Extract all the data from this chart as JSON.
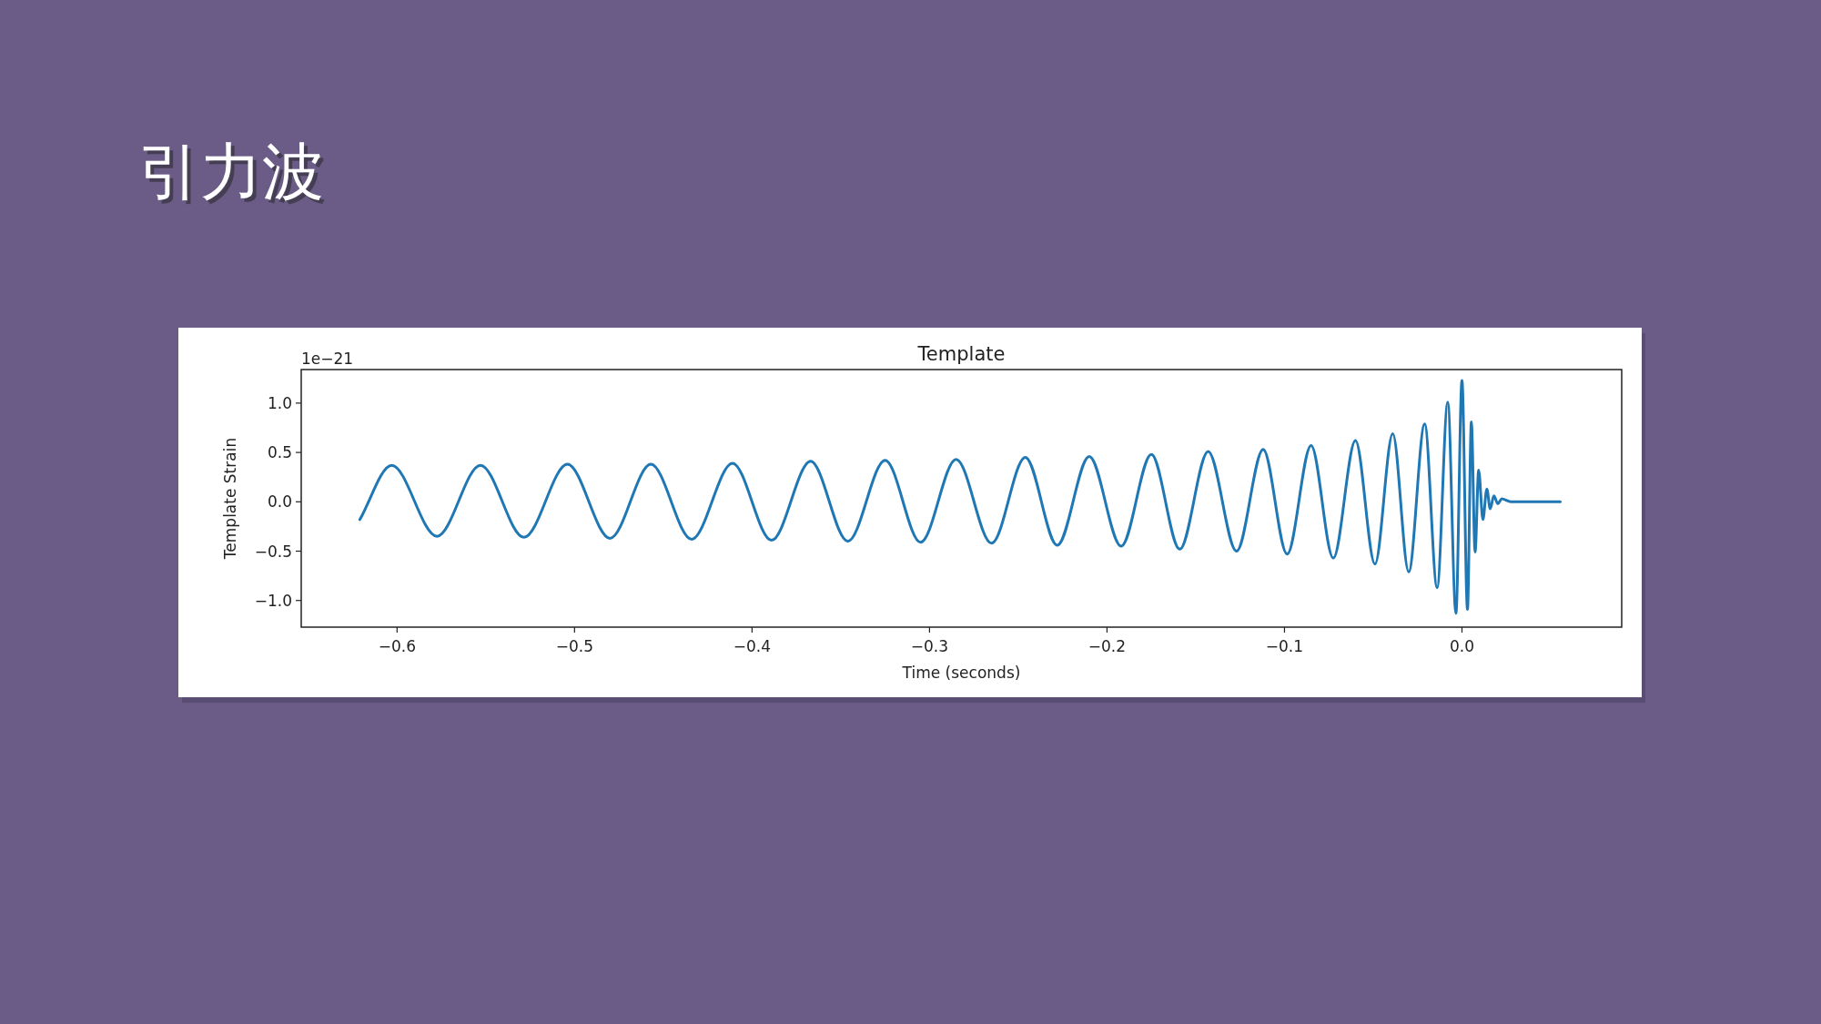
{
  "chart_data": {
    "type": "line",
    "title": "引力波",
    "subtitle": "Template",
    "xlabel": "Time (seconds)",
    "ylabel": "Template Strain",
    "annotations": [
      "1e−21"
    ],
    "x": [
      -0.621,
      -0.603,
      -0.5775,
      -0.553,
      -0.5285,
      -0.504,
      -0.48,
      -0.457,
      -0.434,
      -0.411,
      -0.389,
      -0.367,
      -0.346,
      -0.325,
      -0.305,
      -0.285,
      -0.265,
      -0.246,
      -0.228,
      -0.21,
      -0.192,
      -0.175,
      -0.159,
      -0.143,
      -0.127,
      -0.112,
      -0.0985,
      -0.085,
      -0.0725,
      -0.06,
      -0.049,
      -0.039,
      -0.03,
      -0.021,
      -0.014,
      -0.008,
      -0.0034,
      0.0,
      0.0031,
      0.0053,
      0.0074,
      0.0094,
      0.0118,
      0.014,
      0.0159,
      0.018,
      0.0202,
      0.0224,
      0.0275,
      0.0554
    ],
    "series": [
      {
        "color": "#1f77b4",
        "values": [
          -0.18,
          0.37,
          -0.35,
          0.37,
          -0.36,
          0.38,
          -0.37,
          0.38,
          -0.38,
          0.39,
          -0.39,
          0.41,
          -0.4,
          0.42,
          -0.41,
          0.43,
          -0.42,
          0.45,
          -0.44,
          0.46,
          -0.45,
          0.48,
          -0.48,
          0.51,
          -0.5,
          0.53,
          -0.53,
          0.57,
          -0.57,
          0.62,
          -0.63,
          0.69,
          -0.71,
          0.79,
          -0.87,
          1.01,
          -1.13,
          1.23,
          -1.09,
          0.81,
          -0.51,
          0.32,
          -0.18,
          0.13,
          -0.07,
          0.06,
          -0.02,
          0.03,
          0.0,
          0.0
        ]
      }
    ],
    "xlim": [
      -0.654,
      0.09
    ],
    "ylim": [
      -1.27,
      1.34
    ],
    "xticks": [
      {
        "value": -0.6,
        "label": "−0.6"
      },
      {
        "value": -0.5,
        "label": "−0.5"
      },
      {
        "value": -0.4,
        "label": "−0.4"
      },
      {
        "value": -0.3,
        "label": "−0.3"
      },
      {
        "value": -0.2,
        "label": "−0.2"
      },
      {
        "value": -0.1,
        "label": "−0.1"
      },
      {
        "value": 0.0,
        "label": "0.0"
      }
    ],
    "yticks": [
      {
        "value": -1.0,
        "label": "−1.0"
      },
      {
        "value": -0.5,
        "label": "−0.5"
      },
      {
        "value": 0.0,
        "label": "0.0"
      },
      {
        "value": 0.5,
        "label": "0.5"
      },
      {
        "value": 1.0,
        "label": "1.0"
      }
    ]
  }
}
